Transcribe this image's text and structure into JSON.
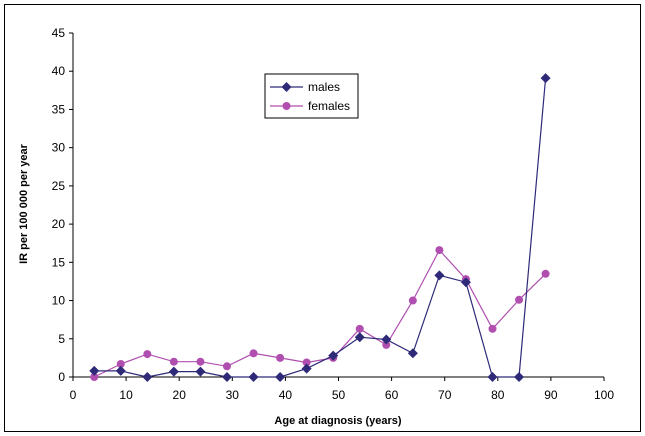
{
  "chart_data": {
    "type": "line",
    "title": "",
    "xlabel": "Age at diagnosis (years)",
    "ylabel": "IR per 100 000 per year",
    "xlim": [
      0,
      100
    ],
    "ylim": [
      0,
      45
    ],
    "xticks": [
      0,
      10,
      20,
      30,
      40,
      50,
      60,
      70,
      80,
      90,
      100
    ],
    "yticks": [
      0,
      5,
      10,
      15,
      20,
      25,
      30,
      35,
      40,
      45
    ],
    "grid": false,
    "legend_position": "top-center",
    "series": [
      {
        "name": "males",
        "color": "#2e2a78",
        "marker": "diamond",
        "x": [
          4,
          9,
          14,
          19,
          24,
          29,
          34,
          39,
          44,
          49,
          54,
          59,
          64,
          69,
          74,
          79,
          84,
          89
        ],
        "y": [
          0.8,
          0.8,
          0,
          0.7,
          0.7,
          0,
          0,
          0,
          1.1,
          2.8,
          5.2,
          4.9,
          3.1,
          13.3,
          12.4,
          0,
          0,
          39.1
        ]
      },
      {
        "name": "females",
        "color": "#b04fb0",
        "marker": "circle",
        "x": [
          4,
          9,
          14,
          19,
          24,
          29,
          34,
          39,
          44,
          49,
          54,
          59,
          64,
          69,
          74,
          79,
          84,
          89
        ],
        "y": [
          0,
          1.7,
          3.0,
          2.0,
          2.0,
          1.4,
          3.1,
          2.5,
          1.9,
          2.5,
          6.3,
          4.2,
          10.0,
          16.6,
          12.8,
          6.3,
          10.1,
          13.5
        ]
      }
    ]
  }
}
